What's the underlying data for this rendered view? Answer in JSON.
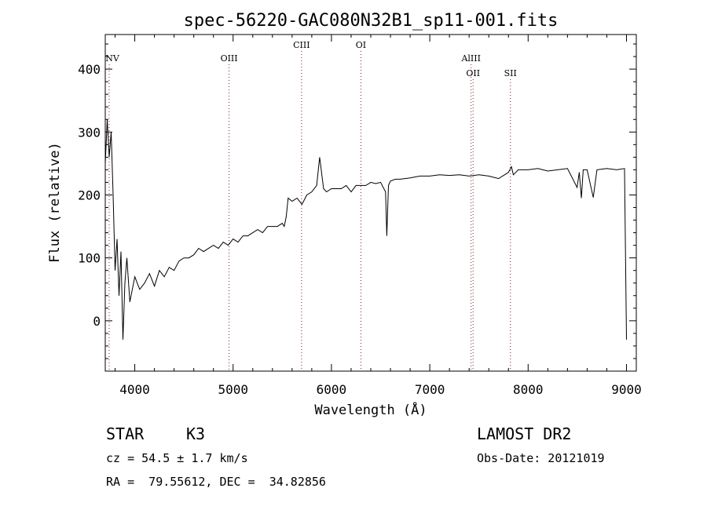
{
  "chart_data": {
    "type": "line",
    "title": "spec-56220-GAC080N32B1_sp11-001.fits",
    "xlabel": "Wavelength (Å)",
    "ylabel": "Flux (relative)",
    "xlim": [
      3700,
      9100
    ],
    "ylim": [
      -80,
      455
    ],
    "xticks": [
      4000,
      5000,
      6000,
      7000,
      8000,
      9000
    ],
    "yticks": [
      0,
      100,
      200,
      300,
      400
    ],
    "grid": false,
    "line_color": "#000000",
    "marker_color": "#7a2020",
    "lines": [
      {
        "label": "NV",
        "x": 3740,
        "row": 1
      },
      {
        "label": "OIII",
        "x": 4959,
        "row": 1
      },
      {
        "label": "CIII",
        "x": 5696,
        "row": 0
      },
      {
        "label": "OI",
        "x": 6300,
        "row": 0
      },
      {
        "label": "AlIII",
        "x": 7420,
        "row": 1
      },
      {
        "label": "OII",
        "x": 7440,
        "row": 2
      },
      {
        "label": "SII",
        "x": 7820,
        "row": 2
      }
    ],
    "series": [
      {
        "x": [
          3700,
          3720,
          3740,
          3760,
          3780,
          3800,
          3820,
          3840,
          3860,
          3880,
          3900,
          3920,
          3950,
          4000,
          4050,
          4100,
          4150,
          4200,
          4250,
          4300,
          4350,
          4400,
          4450,
          4500,
          4550,
          4600,
          4650,
          4700,
          4750,
          4800,
          4850,
          4900,
          4950,
          5000,
          5050,
          5100,
          5150,
          5200,
          5250,
          5300,
          5350,
          5400,
          5450,
          5500,
          5520,
          5540,
          5560,
          5600,
          5650,
          5700,
          5750,
          5800,
          5850,
          5880,
          5900,
          5920,
          5950,
          6000,
          6050,
          6100,
          6150,
          6200,
          6250,
          6300,
          6350,
          6400,
          6450,
          6500,
          6550,
          6563,
          6580,
          6600,
          6650,
          6700,
          6800,
          6900,
          7000,
          7100,
          7200,
          7300,
          7400,
          7500,
          7600,
          7700,
          7800,
          7830,
          7850,
          7900,
          8000,
          8100,
          8200,
          8300,
          8400,
          8498,
          8520,
          8542,
          8560,
          8600,
          8662,
          8700,
          8800,
          8900,
          8980,
          9000
        ],
        "y": [
          250,
          320,
          260,
          300,
          200,
          80,
          130,
          40,
          110,
          -30,
          60,
          100,
          30,
          70,
          50,
          60,
          75,
          55,
          80,
          70,
          85,
          80,
          95,
          100,
          100,
          105,
          115,
          110,
          115,
          120,
          115,
          125,
          120,
          130,
          125,
          135,
          135,
          140,
          145,
          140,
          150,
          150,
          150,
          155,
          150,
          165,
          195,
          190,
          195,
          185,
          200,
          205,
          215,
          260,
          235,
          210,
          205,
          210,
          210,
          210,
          215,
          205,
          215,
          215,
          215,
          220,
          218,
          220,
          205,
          135,
          215,
          222,
          225,
          225,
          227,
          230,
          230,
          232,
          231,
          232,
          230,
          232,
          230,
          226,
          236,
          245,
          232,
          240,
          240,
          242,
          238,
          240,
          242,
          212,
          236,
          195,
          240,
          240,
          196,
          240,
          242,
          240,
          242,
          -30
        ]
      }
    ]
  },
  "info": {
    "object_class": "STAR",
    "subclass": "K3",
    "survey": "LAMOST DR2",
    "redshift_line": "cz = 54.5 ± 1.7 km/s",
    "obs_date_line": "Obs-Date: 20121019",
    "coords_line": "RA =  79.55612, DEC =  34.82856"
  }
}
